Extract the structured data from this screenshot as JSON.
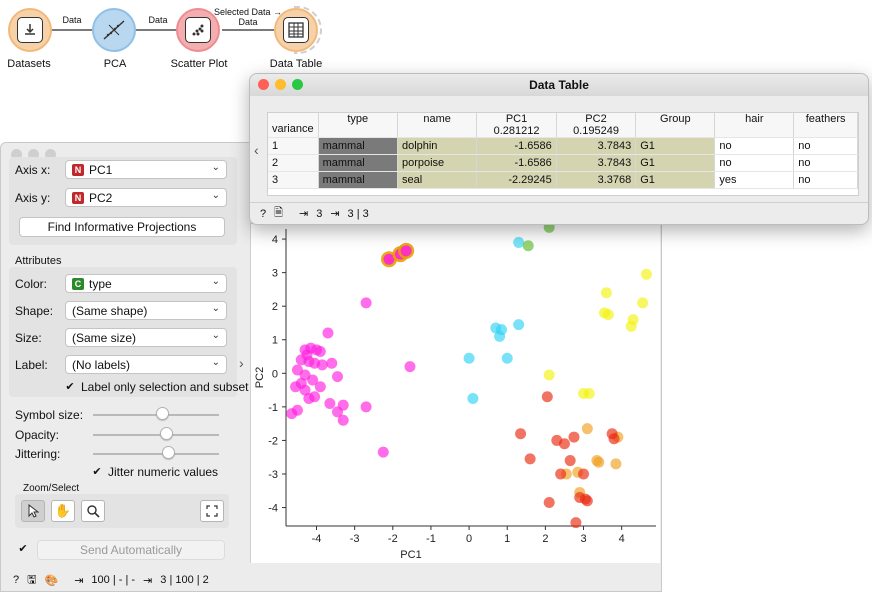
{
  "workflow": {
    "nodes": [
      {
        "label": "Datasets",
        "color": "#f7d2a8",
        "ring": "#f2b97a",
        "icon": "file-import-icon"
      },
      {
        "label": "PCA",
        "color": "#b9d7ef",
        "ring": "#8fc0e6",
        "icon": "pca-icon"
      },
      {
        "label": "Scatter Plot",
        "color": "#f4aeb0",
        "ring": "#ee8d90",
        "icon": "scatter-icon"
      },
      {
        "label": "Data Table",
        "color": "#f7d2a8",
        "ring": "#f2b97a",
        "icon": "table-icon"
      }
    ],
    "links": [
      {
        "label": "Data"
      },
      {
        "label": "Data"
      },
      {
        "label": "Selected Data → Data"
      }
    ]
  },
  "scatter": {
    "axis_x_label": "Axis x:",
    "axis_x_value": "PC1",
    "axis_x_badge": "N",
    "axis_y_label": "Axis y:",
    "axis_y_value": "PC2",
    "axis_y_badge": "N",
    "find_button": "Find Informative Projections",
    "attributes_title": "Attributes",
    "color_label": "Color:",
    "color_value": "type",
    "color_badge": "C",
    "shape_label": "Shape:",
    "shape_value": "(Same shape)",
    "size_label": "Size:",
    "size_value": "(Same size)",
    "label_label": "Label:",
    "label_value": "(No labels)",
    "label_only_selection": "Label only selection and subset",
    "symbol_size_label": "Symbol size:",
    "symbol_size_level": 0.55,
    "opacity_label": "Opacity:",
    "opacity_level": 0.58,
    "jittering_label": "Jittering:",
    "jittering_level": 0.6,
    "jitter_numeric": "Jitter numeric values",
    "zoom_title": "Zoom/Select",
    "send_auto": "Send Automatically",
    "status_input": "100 | - | -",
    "status_output": "3 | 100 | 2"
  },
  "chart_data": {
    "type": "scatter",
    "xlabel": "PC1",
    "ylabel": "PC2",
    "xlim": [
      -4.8,
      4.9
    ],
    "ylim": [
      -4.55,
      4.3
    ],
    "xticks": [
      "-4",
      "-3",
      "-2",
      "-1",
      "0",
      "1",
      "2",
      "3",
      "4"
    ],
    "yticks": [
      "4",
      "3",
      "2",
      "1",
      "0",
      "-1",
      "-2",
      "-3",
      "-4"
    ],
    "colors": {
      "magenta": "#ff1fe0",
      "cyan": "#2fd4f5",
      "green": "#5cbf2e",
      "yellow": "#f2f20f",
      "orange": "#f0a020",
      "red": "#ea2a10",
      "selected": "#e8a000"
    },
    "series": [
      {
        "color": "magenta",
        "points": [
          [
            -4.3,
            0.7
          ],
          [
            -4.15,
            0.75
          ],
          [
            -4.0,
            0.7
          ],
          [
            -3.9,
            0.65
          ],
          [
            -4.4,
            0.4
          ],
          [
            -4.2,
            0.35
          ],
          [
            -4.05,
            0.3
          ],
          [
            -3.85,
            0.25
          ],
          [
            -3.6,
            0.3
          ],
          [
            -3.45,
            -0.1
          ],
          [
            -4.5,
            0.1
          ],
          [
            -4.3,
            -0.05
          ],
          [
            -4.1,
            -0.2
          ],
          [
            -3.9,
            -0.4
          ],
          [
            -4.55,
            -0.4
          ],
          [
            -4.3,
            -0.5
          ],
          [
            -4.05,
            -0.7
          ],
          [
            -4.65,
            -1.2
          ],
          [
            -4.5,
            -1.1
          ],
          [
            -3.65,
            -0.9
          ],
          [
            -3.45,
            -1.15
          ],
          [
            -3.3,
            -1.4
          ],
          [
            -3.3,
            -0.95
          ],
          [
            -3.7,
            1.2
          ],
          [
            -2.7,
            2.1
          ],
          [
            -1.55,
            0.2
          ],
          [
            -2.7,
            -1.0
          ],
          [
            -2.25,
            -2.35
          ],
          [
            -4.4,
            -0.3
          ],
          [
            -4.25,
            0.55
          ],
          [
            -4.2,
            -0.75
          ]
        ]
      },
      {
        "color": "cyan",
        "points": [
          [
            1.3,
            3.9
          ],
          [
            0.7,
            1.35
          ],
          [
            0.85,
            1.3
          ],
          [
            0.8,
            1.1
          ],
          [
            1.3,
            1.45
          ],
          [
            0.0,
            0.45
          ],
          [
            1.0,
            0.45
          ],
          [
            0.1,
            -0.75
          ]
        ]
      },
      {
        "color": "green",
        "points": [
          [
            1.55,
            3.8
          ],
          [
            2.1,
            4.35
          ]
        ]
      },
      {
        "color": "yellow",
        "points": [
          [
            4.65,
            2.95
          ],
          [
            3.6,
            2.4
          ],
          [
            3.55,
            1.8
          ],
          [
            3.65,
            1.75
          ],
          [
            4.55,
            2.1
          ],
          [
            4.3,
            1.6
          ],
          [
            4.25,
            1.4
          ],
          [
            2.1,
            -0.05
          ],
          [
            3.0,
            -0.6
          ],
          [
            3.15,
            -0.6
          ]
        ]
      },
      {
        "color": "orange",
        "points": [
          [
            3.1,
            -1.65
          ],
          [
            3.9,
            -1.9
          ],
          [
            3.85,
            -2.7
          ],
          [
            3.35,
            -2.6
          ],
          [
            3.4,
            -2.65
          ],
          [
            2.55,
            -3.0
          ],
          [
            2.85,
            -2.95
          ],
          [
            2.9,
            -3.55
          ]
        ]
      },
      {
        "color": "red",
        "points": [
          [
            2.05,
            -0.7
          ],
          [
            1.35,
            -1.8
          ],
          [
            1.6,
            -2.55
          ],
          [
            2.3,
            -2.0
          ],
          [
            2.5,
            -2.1
          ],
          [
            2.75,
            -1.9
          ],
          [
            3.75,
            -1.8
          ],
          [
            3.8,
            -1.95
          ],
          [
            2.65,
            -2.6
          ],
          [
            2.4,
            -3.0
          ],
          [
            3.0,
            -3.0
          ],
          [
            2.1,
            -3.85
          ],
          [
            2.9,
            -3.7
          ],
          [
            3.05,
            -3.75
          ],
          [
            3.1,
            -3.8
          ],
          [
            2.8,
            -4.45
          ]
        ]
      },
      {
        "color": "selected",
        "points": [
          [
            -2.1,
            3.4
          ],
          [
            -1.8,
            3.55
          ],
          [
            -1.65,
            3.65
          ]
        ]
      }
    ]
  },
  "table": {
    "title": "Data Table",
    "columns": [
      {
        "label": "type",
        "sub": ""
      },
      {
        "label": "name",
        "sub": ""
      },
      {
        "label": "PC1",
        "sub": "0.281212"
      },
      {
        "label": "PC2",
        "sub": "0.195249"
      },
      {
        "label": "Group",
        "sub": ""
      },
      {
        "label": "hair",
        "sub": ""
      },
      {
        "label": "feathers",
        "sub": ""
      }
    ],
    "rowheader": "variance",
    "rows": [
      {
        "idx": "1",
        "cells": [
          "mammal",
          "dolphin",
          "-1.6586",
          "3.7843",
          "G1",
          "no",
          "no"
        ]
      },
      {
        "idx": "2",
        "cells": [
          "mammal",
          "porpoise",
          "-1.6586",
          "3.7843",
          "G1",
          "no",
          "no"
        ]
      },
      {
        "idx": "3",
        "cells": [
          "mammal",
          "seal",
          "-2.29245",
          "3.3768",
          "G1",
          "yes",
          "no"
        ]
      }
    ],
    "status_input": "3",
    "status_output": "3 | 3"
  }
}
